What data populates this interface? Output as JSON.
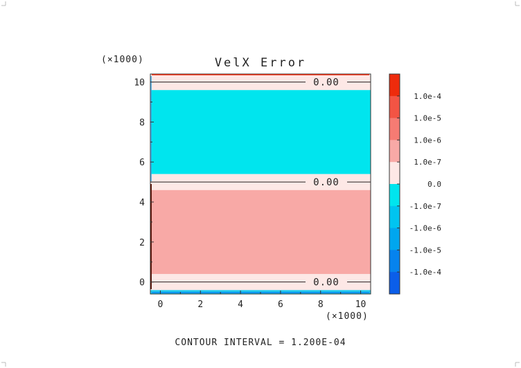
{
  "chart_data": {
    "type": "heatmap",
    "title": "VelX Error",
    "x_multiplier": "(×1000)",
    "y_multiplier": "(×1000)",
    "xlim": [
      -0.5,
      10.5
    ],
    "ylim": [
      -0.6,
      10.4
    ],
    "x_ticks": [
      0,
      2,
      4,
      6,
      8,
      10
    ],
    "y_ticks": [
      0,
      2,
      4,
      6,
      8,
      10
    ],
    "bands": [
      {
        "y0": -0.6,
        "y1": -0.4,
        "color": "#1ec8ee"
      },
      {
        "y0": -0.4,
        "y1": 0.4,
        "color": "#fde8e6"
      },
      {
        "y0": 0.4,
        "y1": 4.6,
        "color": "#f8a9a6"
      },
      {
        "y0": 4.6,
        "y1": 5.4,
        "color": "#fde8e6"
      },
      {
        "y0": 5.4,
        "y1": 9.6,
        "color": "#00e5ee"
      },
      {
        "y0": 9.6,
        "y1": 10.4,
        "color": "#fde8e6"
      }
    ],
    "contour_labels": [
      {
        "y": 0,
        "text": "0.00"
      },
      {
        "y": 5,
        "text": "0.00"
      },
      {
        "y": 10,
        "text": "0.00"
      }
    ],
    "colorbar": {
      "colors": [
        "#ee2b0c",
        "#f35444",
        "#f57b73",
        "#f8a9a6",
        "#fde8e6",
        "#00e5ee",
        "#00c4f0",
        "#00a6ef",
        "#0683ee",
        "#0b5ee9"
      ],
      "labels": [
        "1.0e-4",
        "1.0e-5",
        "1.0e-6",
        "1.0e-7",
        "0.0",
        "-1.0e-7",
        "-1.0e-6",
        "-1.0e-5",
        "-1.0e-4"
      ]
    },
    "footer": "CONTOUR INTERVAL = 1.200E-04"
  }
}
